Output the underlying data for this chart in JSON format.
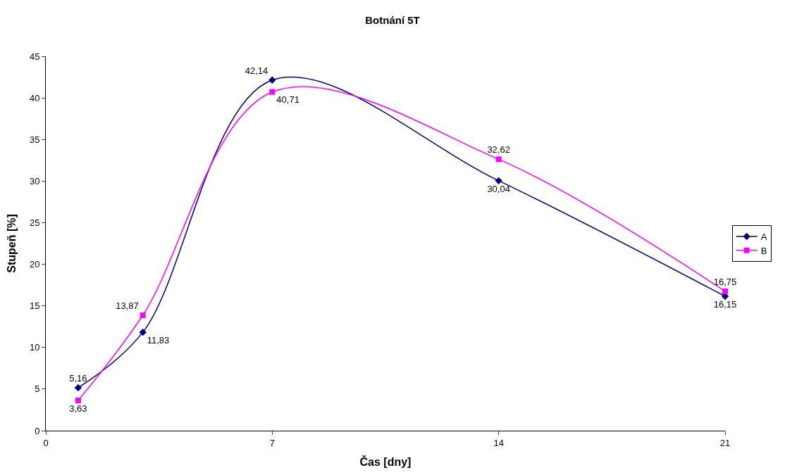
{
  "chart_data": {
    "type": "line",
    "title": "Botnání 5T",
    "xlabel": "Čas [dny]",
    "ylabel": "Stupeň [%]",
    "x": [
      1,
      3,
      7,
      14,
      21
    ],
    "series": [
      {
        "name": "A",
        "color": "#000080",
        "marker": "diamond",
        "values": [
          5.16,
          11.83,
          42.14,
          30.04,
          16.15
        ],
        "value_labels": [
          "5,16",
          "11,83",
          "42,14",
          "30,04",
          "16,15"
        ]
      },
      {
        "name": "B",
        "color": "#ff00ff",
        "marker": "square",
        "values": [
          3.63,
          13.87,
          40.71,
          32.62,
          16.75
        ],
        "value_labels": [
          "3,63",
          "13,87",
          "40,71",
          "32,62",
          "16,75"
        ]
      }
    ],
    "xlim": [
      0,
      21
    ],
    "xticks": [
      0,
      7,
      14,
      21
    ],
    "ylim": [
      0,
      45
    ],
    "yticks": [
      0,
      5,
      10,
      15,
      20,
      25,
      30,
      35,
      40,
      45
    ],
    "grid": false,
    "legend": "right"
  }
}
